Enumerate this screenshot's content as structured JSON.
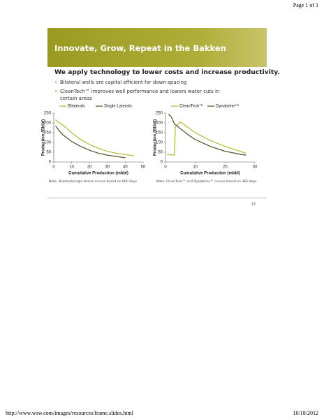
{
  "page_header": "Page 1 of 1",
  "slide": {
    "title": "Innovate, Grow, Repeat in the Bakken",
    "heading": "We apply technology to lower costs and increase productivity.",
    "bullets": [
      "Bilateral wells are capital efficient for down-spacing",
      "CleanTech™ improves well performance and lowers water cuts in certain areas"
    ],
    "page_number": "15"
  },
  "chart_data": [
    {
      "type": "line",
      "x_label": "Cumulative Production (mbbl)",
      "y_label": "Production (Bbl/d)",
      "xlim": [
        0,
        50
      ],
      "xticks": [
        0,
        10,
        20,
        30,
        40,
        50
      ],
      "ylim": [
        0,
        250
      ],
      "yticks": [
        0,
        50,
        100,
        150,
        200,
        250
      ],
      "note": "Note: Bilateral/single lateral curves based on 800 days",
      "series": [
        {
          "name": "Bilaterals",
          "color": "#b7bf3c",
          "x": [
            1,
            3,
            5,
            10,
            15,
            20,
            25,
            30,
            35,
            40,
            45
          ],
          "values": [
            215,
            200,
            190,
            150,
            115,
            90,
            70,
            55,
            45,
            38,
            32
          ]
        },
        {
          "name": "Single Laterals",
          "color": "#5a5930",
          "x": [
            1,
            3,
            5,
            10,
            15,
            20,
            25,
            30,
            35,
            40
          ],
          "values": [
            185,
            160,
            140,
            105,
            80,
            60,
            45,
            35,
            28,
            22
          ]
        }
      ]
    },
    {
      "type": "line",
      "x_label": "Cumulative Production (mbbl)",
      "y_label": "Production (Bbl/d)",
      "xlim": [
        0,
        30
      ],
      "xticks": [
        0,
        10,
        20,
        30
      ],
      "ylim": [
        0,
        250
      ],
      "yticks": [
        0,
        50,
        100,
        150,
        200,
        250
      ],
      "note": "Note: CleanTech™ and Dynabrine™ curves based on 365 days",
      "series": [
        {
          "name": "CleanTech™",
          "color": "#b7bf3c",
          "x": [
            0.5,
            2,
            3,
            3.3,
            5,
            10,
            15,
            20,
            25,
            27
          ],
          "values": [
            40,
            36,
            35,
            180,
            205,
            150,
            110,
            80,
            55,
            45
          ]
        },
        {
          "name": "Dynabrine™",
          "color": "#5a5930",
          "x": [
            1,
            2,
            3,
            5,
            8,
            10,
            15,
            20,
            25,
            27
          ],
          "values": [
            245,
            230,
            195,
            170,
            135,
            115,
            80,
            55,
            40,
            35
          ]
        }
      ]
    }
  ],
  "footer": {
    "url": "http://www.wsw.com/images/resources/frame.slides.html",
    "date": "10/18/2012"
  }
}
